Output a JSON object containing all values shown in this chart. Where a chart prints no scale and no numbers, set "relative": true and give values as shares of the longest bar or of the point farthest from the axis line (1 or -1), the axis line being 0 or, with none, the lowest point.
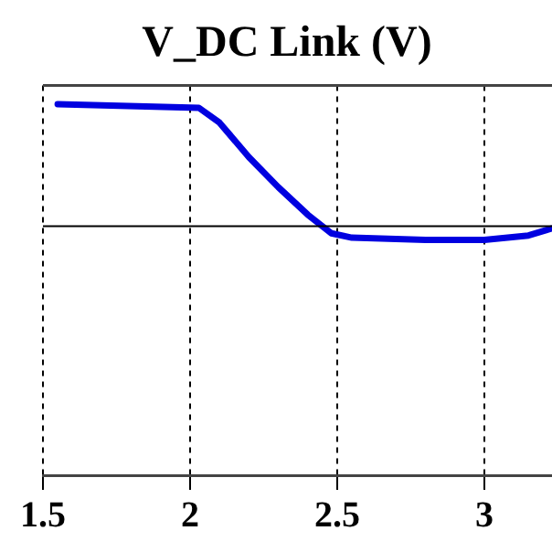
{
  "chart_data": {
    "type": "line",
    "title": "V_DC Link (V)",
    "relative": true,
    "x": [
      1.55,
      2.03,
      2.1,
      2.2,
      2.3,
      2.4,
      2.48,
      2.55,
      2.8,
      3.0,
      3.15,
      3.23
    ],
    "series": [
      {
        "color": "#0000e0",
        "values": [
          1.0,
          0.99,
          0.95,
          0.857,
          0.776,
          0.702,
          0.652,
          0.64,
          0.634,
          0.634,
          0.646,
          0.665
        ]
      }
    ],
    "xlim": [
      1.5,
      3.23
    ],
    "xticks": [
      1.5,
      2,
      2.5,
      3
    ],
    "grid": "x",
    "line_style": "solid",
    "marker": "none",
    "ref_lines": [
      {
        "axis": "y",
        "value": 0.671,
        "color": "#000000",
        "line_style": "solid"
      }
    ]
  }
}
